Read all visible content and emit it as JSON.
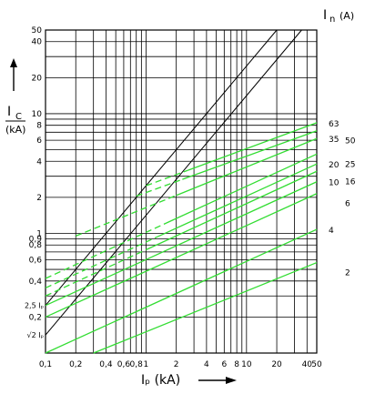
{
  "chart_data": {
    "type": "line",
    "scale": "log-log",
    "grid": true,
    "xlim": [
      0.1,
      50
    ],
    "ylim": [
      0.1,
      50
    ],
    "x_ticks": [
      0.1,
      0.2,
      0.4,
      0.6,
      0.8,
      1,
      2,
      4,
      6,
      8,
      10,
      20,
      40,
      50
    ],
    "x_tick_labels": [
      "0,1",
      "0,2",
      "0,4",
      "0,6",
      "0,8",
      "1",
      "2",
      "4",
      "6",
      "8",
      "10",
      "20",
      "40",
      "50"
    ],
    "y_ticks": [
      0.2,
      0.4,
      0.6,
      0.8,
      0.9,
      1,
      2,
      4,
      6,
      8,
      10,
      20,
      40,
      50
    ],
    "y_tick_labels": [
      "0,2",
      "0,4",
      "0,6",
      "0,8",
      "0,9",
      "1",
      "2",
      "4",
      "6",
      "8",
      "10",
      "20",
      "40",
      "50"
    ],
    "y_extra_labels": [
      "2,5 Iₚ",
      "√2 Iₚ"
    ],
    "xlabel": "Iₚ (kA)",
    "ylabel_main": "I",
    "ylabel_sub": "C",
    "ylabel_unit": "(kA)",
    "legend_title_main": "I",
    "legend_title_sub": "n",
    "legend_title_unit": "(A)",
    "reference_lines": [
      {
        "label": "2,5 Iₚ",
        "factor": 2.5,
        "color": "#000000"
      },
      {
        "label": "√2 Iₚ",
        "factor": 1.414,
        "color": "#000000"
      }
    ],
    "series": [
      {
        "name": "2",
        "x": [
          0.3,
          50
        ],
        "y": [
          0.1,
          0.57
        ],
        "dashed_until": null,
        "color": "#33dd33"
      },
      {
        "name": "4",
        "x": [
          0.1,
          50
        ],
        "y": [
          0.1,
          1.08
        ],
        "dashed_until": null,
        "color": "#33dd33"
      },
      {
        "name": "6",
        "x": [
          0.1,
          50
        ],
        "y": [
          0.2,
          2.15
        ],
        "dashed_until": null,
        "color": "#33dd33"
      },
      {
        "name": "10",
        "x": [
          0.1,
          50
        ],
        "y": [
          0.25,
          2.7
        ],
        "dashed_until": null,
        "color": "#33dd33"
      },
      {
        "name": "16",
        "x": [
          0.1,
          50
        ],
        "y": [
          0.3,
          3.3
        ],
        "dashed_until": 1.0,
        "color": "#33dd33"
      },
      {
        "name": "20",
        "x": [
          0.1,
          50
        ],
        "y": [
          0.35,
          3.8
        ],
        "dashed_until": 1.3,
        "color": "#33dd33"
      },
      {
        "name": "25",
        "x": [
          0.1,
          50
        ],
        "y": [
          0.42,
          4.6
        ],
        "dashed_until": 1.6,
        "color": "#33dd33"
      },
      {
        "name": "35",
        "x": [
          0.2,
          50
        ],
        "y": [
          0.95,
          6.2
        ],
        "dashed_until": 2.0,
        "color": "#33dd33"
      },
      {
        "name": "50",
        "x": [
          0.8,
          50
        ],
        "y": [
          2.05,
          7.2
        ],
        "dashed_until": 2.3,
        "color": "#33dd33"
      },
      {
        "name": "63",
        "x": [
          1.0,
          50
        ],
        "y": [
          2.5,
          8.4
        ],
        "dashed_until": 2.6,
        "color": "#33dd33"
      }
    ]
  }
}
